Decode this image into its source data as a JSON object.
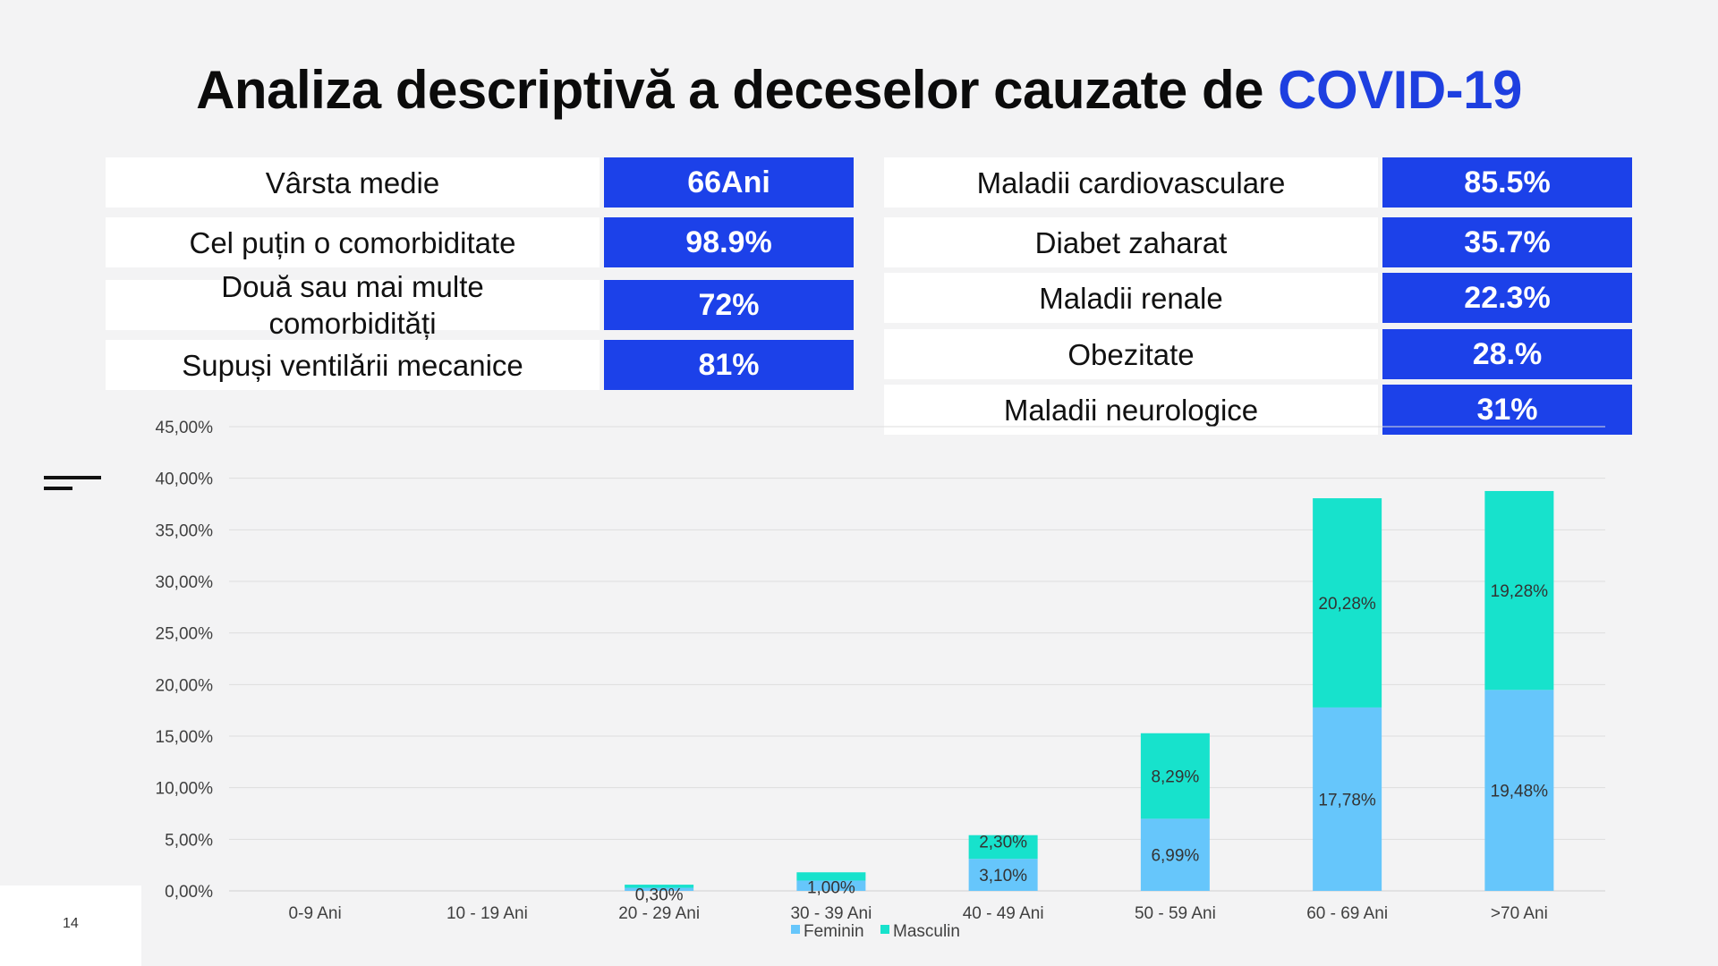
{
  "slide": {
    "title_main": "Analiza descriptivă a deceselor cauzate de ",
    "title_accent": "COVID-19",
    "page_number": "14"
  },
  "left_table": [
    {
      "label": "Vârsta medie",
      "value": "66Ani"
    },
    {
      "label": "Cel puțin o comorbiditate",
      "value": "98.9%"
    },
    {
      "label": "Două sau mai multe comorbidități",
      "value": "72%"
    },
    {
      "label": "Supuși ventilării mecanice",
      "value": "81%"
    }
  ],
  "right_table": [
    {
      "label": "Maladii cardiovasculare",
      "value": "85.5%"
    },
    {
      "label": "Diabet zaharat",
      "value": "35.7%"
    },
    {
      "label": "Maladii renale",
      "value": "22.3%"
    },
    {
      "label": "Obezitate",
      "value": "28.%"
    },
    {
      "label": "Maladii neurologice",
      "value": "31%"
    }
  ],
  "colors": {
    "accent": "#1e3fe0",
    "value_box": "#1c41e9",
    "feminin": "#66c6fb",
    "masculin": "#17e2cc"
  },
  "chart_data": {
    "type": "bar",
    "stacked": true,
    "categories": [
      "0-9 Ani",
      "10 - 19 Ani",
      "20 - 29 Ani",
      "30 - 39 Ani",
      "40 - 49 Ani",
      "50 - 59 Ani",
      "60 - 69 Ani",
      ">70 Ani"
    ],
    "series": [
      {
        "name": "Feminin",
        "color": "#66c6fb",
        "values": [
          0,
          0,
          0.3,
          1.0,
          3.1,
          6.99,
          17.78,
          19.48
        ],
        "labels": [
          "",
          "",
          "0,30%",
          "1,00%",
          "3,10%",
          "6,99%",
          "17,78%",
          "19,48%"
        ]
      },
      {
        "name": "Masculin",
        "color": "#17e2cc",
        "values": [
          0,
          0,
          0.3,
          0.8,
          2.3,
          8.29,
          20.28,
          19.28
        ],
        "labels": [
          "",
          "",
          "",
          "",
          "2,30%",
          "8,29%",
          "20,28%",
          "19,28%"
        ]
      }
    ],
    "ylim": [
      0,
      45
    ],
    "ytick_step": 5,
    "ytick_labels": [
      "0,00%",
      "5,00%",
      "10,00%",
      "15,00%",
      "20,00%",
      "25,00%",
      "30,00%",
      "35,00%",
      "40,00%",
      "45,00%"
    ],
    "legend": [
      "Feminin",
      "Masculin"
    ],
    "legend_position": "bottom",
    "grid": true,
    "title": "",
    "xlabel": "",
    "ylabel": ""
  }
}
